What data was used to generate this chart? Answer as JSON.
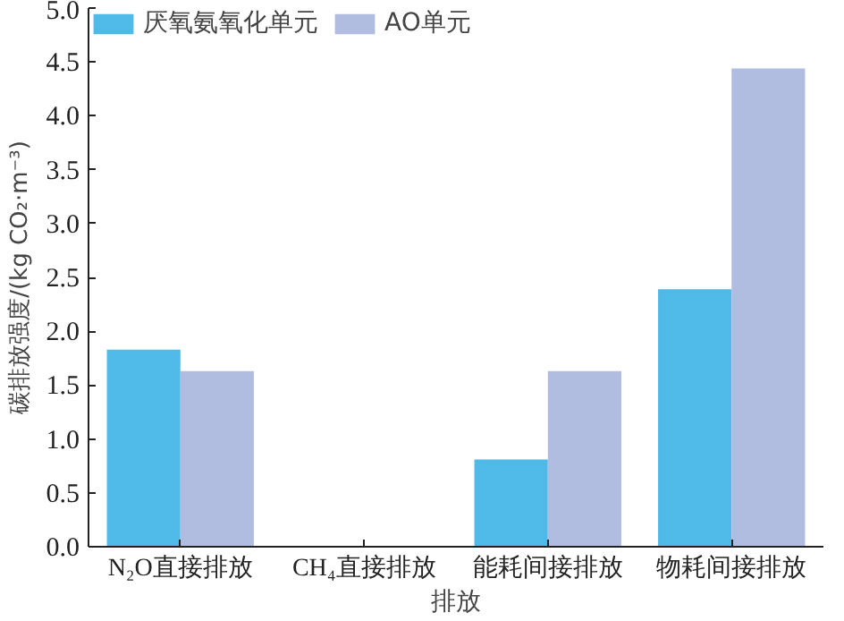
{
  "chart_data": {
    "type": "bar",
    "ylabel": "碳排放强度/(kg CO₂·m⁻³)",
    "categories": [
      "N₂O直接排放",
      "CH₄直接排放",
      "能耗间接排放",
      "物耗间接排放"
    ],
    "series": [
      {
        "name": "厌氧氨氧化单元",
        "color": "#4fb9e8",
        "values": [
          1.83,
          0,
          0.81,
          2.39
        ]
      },
      {
        "name": "AO单元",
        "color": "#b0bde0",
        "values": [
          1.63,
          0,
          1.63,
          4.44
        ]
      }
    ],
    "ylim": [
      0,
      5
    ],
    "yticks": [
      {
        "value": 0,
        "label": "0.0"
      },
      {
        "value": 0.5,
        "label": "0.5"
      },
      {
        "value": 1,
        "label": "1.0"
      },
      {
        "value": 1.5,
        "label": "1.5"
      },
      {
        "value": 2,
        "label": "2.0"
      },
      {
        "value": 2.5,
        "label": "2.5"
      },
      {
        "value": 3,
        "label": "3.0"
      },
      {
        "value": 3.5,
        "label": "3.5"
      },
      {
        "value": 4,
        "label": "4.0"
      },
      {
        "value": 4.5,
        "label": "4.5"
      },
      {
        "value": 5,
        "label": "5.0"
      }
    ],
    "annotations": [
      "排放"
    ],
    "legend": "top",
    "grid": false
  }
}
